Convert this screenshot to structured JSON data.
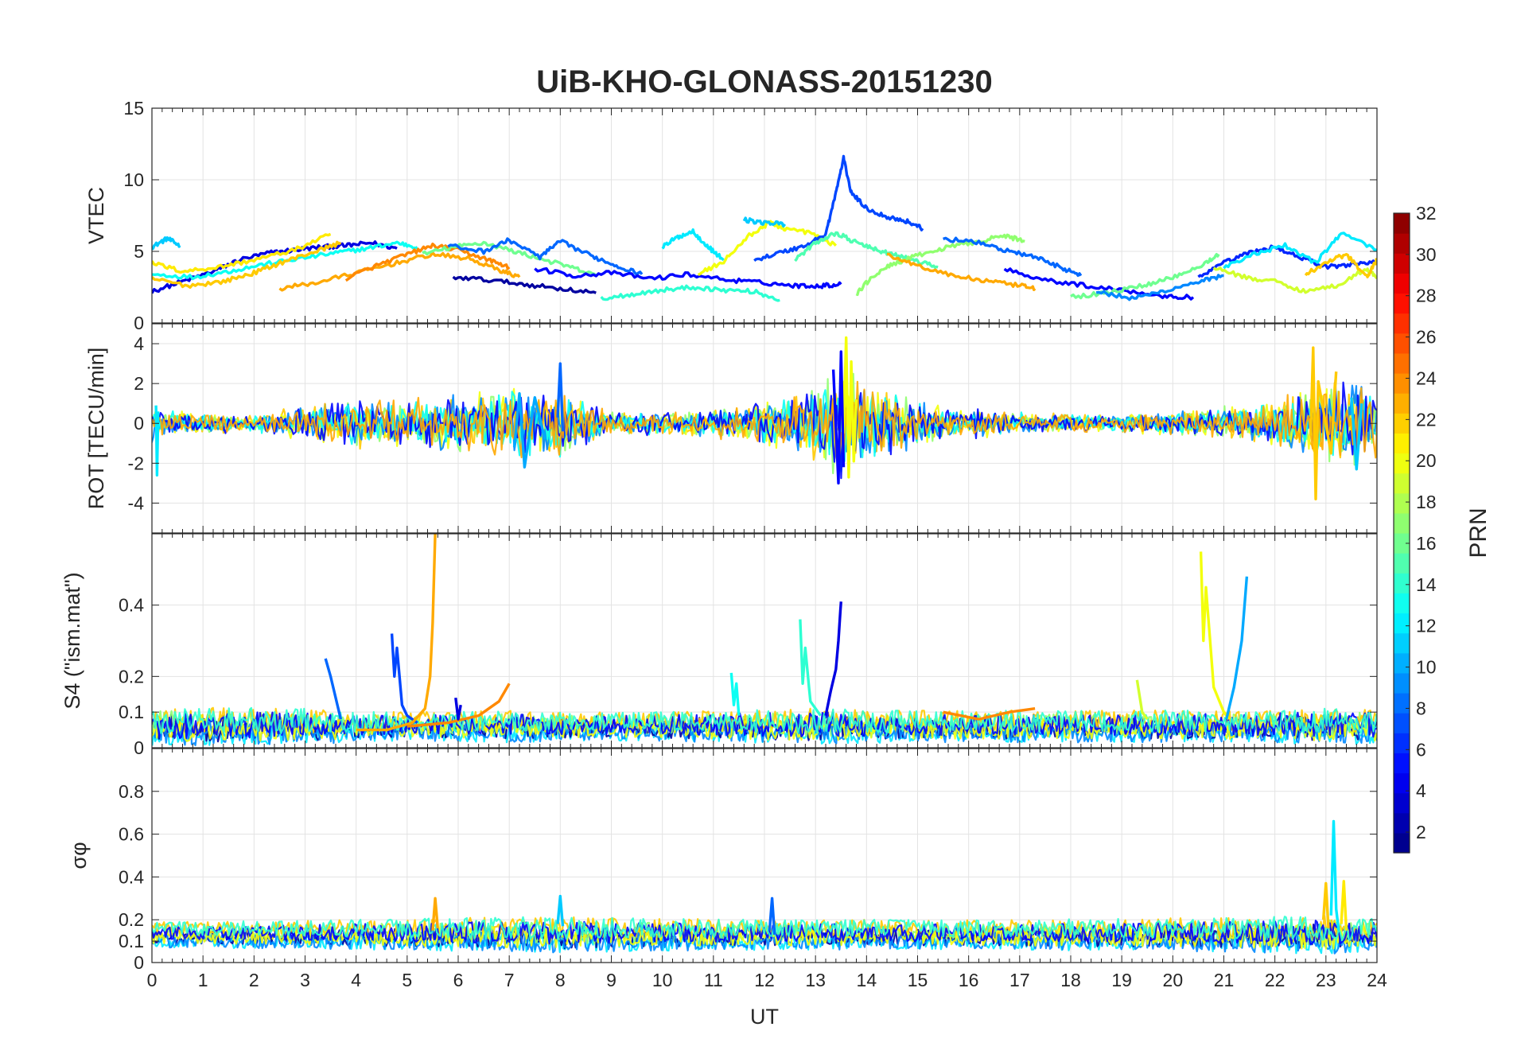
{
  "chart_data": {
    "type": "line",
    "title": "UiB-KHO-GLONASS-20151230",
    "xlabel": "UT",
    "xlim": [
      0,
      24
    ],
    "x_ticks": [
      "0",
      "1",
      "2",
      "3",
      "4",
      "5",
      "6",
      "7",
      "8",
      "9",
      "10",
      "11",
      "12",
      "13",
      "14",
      "15",
      "16",
      "17",
      "18",
      "19",
      "20",
      "21",
      "22",
      "23",
      "24"
    ],
    "grid": true,
    "colorbar": {
      "label": "PRN",
      "range": [
        1,
        32
      ],
      "ticks": [
        "2",
        "4",
        "6",
        "8",
        "10",
        "12",
        "14",
        "16",
        "18",
        "20",
        "22",
        "24",
        "26",
        "28",
        "30",
        "32"
      ],
      "colormap": "jet",
      "placement": "right"
    },
    "panels": [
      {
        "ylabel": "VTEC",
        "ylim": [
          0,
          15
        ],
        "y_ticks": [
          "0",
          "5",
          "10",
          "15"
        ],
        "series": [
          {
            "prn": 11,
            "x": [
              0.0,
              0.3,
              0.55
            ],
            "y": [
              5.3,
              5.9,
              5.4
            ]
          },
          {
            "prn": 4,
            "x": [
              0.0,
              0.6,
              1.2,
              1.7,
              2.3,
              2.8,
              3.3,
              3.8,
              4.3,
              4.8
            ],
            "y": [
              2.2,
              2.9,
              3.6,
              4.4,
              4.9,
              5.1,
              5.3,
              5.4,
              5.6,
              5.2
            ]
          },
          {
            "prn": 13,
            "x": [
              0.0,
              0.8,
              1.5,
              2.2,
              2.9,
              3.6,
              4.2,
              4.8,
              5.2
            ],
            "y": [
              3.4,
              3.2,
              3.6,
              4.1,
              4.5,
              4.9,
              5.2,
              5.6,
              5.3
            ]
          },
          {
            "prn": 21,
            "x": [
              0.0,
              0.6,
              1.3,
              2.0,
              2.8,
              3.5
            ],
            "y": [
              4.2,
              3.6,
              3.9,
              4.4,
              5.1,
              6.2
            ]
          },
          {
            "prn": 22,
            "x": [
              0.0,
              0.7,
              1.4,
              2.0,
              2.6,
              3.2,
              3.7
            ],
            "y": [
              3.1,
              2.6,
              2.9,
              3.5,
              4.3,
              5.0,
              5.6
            ]
          },
          {
            "prn": 23,
            "x": [
              2.5,
              3.2,
              4.0,
              4.8,
              5.5,
              6.2,
              6.8,
              7.2
            ],
            "y": [
              2.4,
              2.8,
              3.5,
              4.2,
              4.8,
              4.5,
              3.7,
              3.2
            ]
          },
          {
            "prn": 24,
            "x": [
              3.8,
              4.4,
              5.0,
              5.5,
              6.0,
              6.6,
              7.0
            ],
            "y": [
              3.1,
              4.0,
              4.8,
              5.4,
              5.1,
              4.4,
              3.9
            ]
          },
          {
            "prn": 16,
            "x": [
              5.3,
              5.9,
              6.5,
              7.0,
              7.6,
              8.2,
              8.7
            ],
            "y": [
              4.8,
              5.3,
              5.6,
              5.1,
              4.5,
              3.9,
              3.3
            ]
          },
          {
            "prn": 2,
            "x": [
              5.9,
              6.6,
              7.3,
              8.0,
              8.7
            ],
            "y": [
              3.2,
              3.0,
              2.7,
              2.4,
              2.1
            ]
          },
          {
            "prn": 8,
            "x": [
              5.8,
              6.5,
              7.0,
              7.6,
              8.0,
              8.6,
              9.1,
              9.6
            ],
            "y": [
              5.4,
              5.0,
              5.8,
              4.6,
              5.7,
              4.7,
              4.0,
              3.4
            ]
          },
          {
            "prn": 5,
            "x": [
              7.5,
              8.3,
              9.0,
              9.8,
              10.5,
              11.3,
              12.0,
              12.6,
              13.1,
              13.5
            ],
            "y": [
              3.8,
              3.3,
              3.5,
              3.1,
              3.4,
              3.0,
              2.8,
              2.6,
              2.6,
              2.7
            ]
          },
          {
            "prn": 14,
            "x": [
              8.8,
              9.4,
              10.0,
              10.6,
              11.2,
              11.8,
              12.3
            ],
            "y": [
              1.7,
              2.0,
              2.3,
              2.5,
              2.3,
              2.2,
              1.6
            ]
          },
          {
            "prn": 12,
            "x": [
              10.0,
              10.3,
              10.6,
              10.9,
              11.2
            ],
            "y": [
              5.3,
              6.0,
              6.4,
              5.3,
              4.4
            ]
          },
          {
            "prn": 20,
            "x": [
              10.7,
              11.2,
              11.7,
              12.1,
              12.4,
              12.9,
              13.4
            ],
            "y": [
              3.4,
              4.3,
              6.1,
              7.0,
              6.6,
              6.3,
              5.4
            ]
          },
          {
            "prn": 11,
            "x": [
              11.6,
              12.0,
              12.4
            ],
            "y": [
              7.2,
              7.0,
              6.9
            ]
          },
          {
            "prn": 7,
            "x": [
              11.8,
              12.3,
              12.8,
              13.2,
              13.4,
              13.55,
              13.7,
              14.0,
              14.4,
              14.8,
              15.1
            ],
            "y": [
              4.4,
              4.9,
              5.4,
              6.2,
              9.1,
              11.5,
              9.1,
              8.0,
              7.4,
              7.1,
              6.6
            ]
          },
          {
            "prn": 15,
            "x": [
              12.6,
              13.0,
              13.4,
              13.8,
              14.2,
              14.6,
              15.0,
              15.4
            ],
            "y": [
              4.4,
              5.6,
              6.3,
              5.6,
              5.1,
              4.7,
              4.3,
              3.9
            ]
          },
          {
            "prn": 17,
            "x": [
              13.8,
              14.1,
              14.5,
              15.0,
              15.6,
              16.2,
              16.7,
              17.1
            ],
            "y": [
              2.0,
              3.2,
              4.1,
              4.7,
              5.3,
              5.7,
              6.1,
              5.7
            ]
          },
          {
            "prn": 23,
            "x": [
              14.4,
              15.0,
              15.7,
              16.4,
              17.0,
              17.3
            ],
            "y": [
              4.8,
              4.0,
              3.3,
              2.9,
              2.6,
              2.4
            ]
          },
          {
            "prn": 8,
            "x": [
              15.5,
              16.2,
              16.8,
              17.3,
              17.8,
              18.2
            ],
            "y": [
              5.9,
              5.6,
              5.0,
              4.6,
              3.9,
              3.3
            ]
          },
          {
            "prn": 5,
            "x": [
              16.7,
              17.5,
              18.3,
              19.0,
              19.8,
              20.4
            ],
            "y": [
              3.8,
              3.0,
              2.6,
              2.3,
              1.9,
              1.8
            ]
          },
          {
            "prn": 16,
            "x": [
              18.0,
              18.7,
              19.4,
              20.0,
              20.6,
              20.9
            ],
            "y": [
              1.8,
              2.1,
              2.6,
              3.2,
              4.1,
              4.8
            ]
          },
          {
            "prn": 9,
            "x": [
              18.5,
              19.2,
              19.8,
              20.5,
              21.0
            ],
            "y": [
              2.2,
              1.7,
              2.2,
              2.9,
              3.3
            ]
          },
          {
            "prn": 6,
            "x": [
              20.5,
              21.0,
              21.5,
              22.0,
              22.5,
              23.0,
              23.5,
              24.0
            ],
            "y": [
              3.1,
              4.2,
              4.9,
              5.3,
              4.6,
              3.9,
              4.1,
              4.3
            ]
          },
          {
            "prn": 12,
            "x": [
              21.0,
              21.6,
              22.2,
              22.8,
              23.3,
              24.0
            ],
            "y": [
              3.9,
              4.8,
              5.4,
              4.2,
              6.3,
              5.1
            ]
          },
          {
            "prn": 19,
            "x": [
              20.8,
              21.4,
              22.0,
              22.6,
              23.2,
              23.8,
              24.0
            ],
            "y": [
              3.9,
              3.2,
              2.9,
              2.2,
              2.6,
              3.8,
              3.1
            ]
          },
          {
            "prn": 22,
            "x": [
              22.6,
              23.0,
              23.4,
              23.8,
              24.0
            ],
            "y": [
              3.4,
              4.2,
              4.8,
              3.2,
              4.4
            ]
          }
        ]
      },
      {
        "ylabel": "ROT [TECU/min]",
        "ylim": [
          -5.5,
          5
        ],
        "y_ticks": [
          "-4",
          "-2",
          "0",
          "2",
          "4"
        ],
        "series": [
          {
            "prn": 12,
            "x": [
              0.08,
              0.1,
              0.12
            ],
            "y": [
              0.9,
              -2.6,
              0.6
            ]
          },
          {
            "prn": 8,
            "x": [
              7.95,
              8.0,
              8.05
            ],
            "y": [
              0.3,
              3.0,
              -0.4
            ]
          },
          {
            "prn": 10,
            "x": [
              7.1,
              7.2,
              7.3,
              7.5,
              7.7
            ],
            "y": [
              -1.2,
              1.5,
              -2.2,
              1.3,
              -0.8
            ]
          },
          {
            "prn": 20,
            "x": [
              13.55,
              13.6,
              13.65,
              13.7,
              13.75,
              13.8
            ],
            "y": [
              -0.5,
              4.3,
              -2.7,
              3.1,
              -1.9,
              1.2
            ]
          },
          {
            "prn": 5,
            "x": [
              13.35,
              13.45,
              13.5,
              13.55
            ],
            "y": [
              2.7,
              -3.0,
              3.6,
              -2.2
            ]
          },
          {
            "prn": 22,
            "x": [
              22.7,
              22.75,
              22.8,
              22.85,
              23.1,
              23.2
            ],
            "y": [
              -0.6,
              3.8,
              -3.8,
              2.1,
              -1.5,
              2.6
            ]
          },
          {
            "prn": 11,
            "x": [
              23.5,
              23.6,
              23.7
            ],
            "y": [
              1.3,
              -2.3,
              1.0
            ]
          }
        ]
      },
      {
        "ylabel": "S4 (\"ism.mat\")",
        "ylim": [
          0,
          0.6
        ],
        "y_ticks": [
          "0",
          "0.1",
          "0.2",
          "0.4"
        ],
        "series": [
          {
            "prn": 8,
            "x": [
              3.4,
              3.5,
              3.6,
              3.7
            ],
            "y": [
              0.25,
              0.2,
              0.14,
              0.08
            ]
          },
          {
            "prn": 7,
            "x": [
              4.7,
              4.75,
              4.8,
              4.9,
              5.0,
              5.2
            ],
            "y": [
              0.32,
              0.2,
              0.28,
              0.12,
              0.09,
              0.07
            ]
          },
          {
            "prn": 23,
            "x": [
              4.0,
              4.6,
              5.1,
              5.35,
              5.45,
              5.5,
              5.55
            ],
            "y": [
              0.05,
              0.05,
              0.07,
              0.11,
              0.2,
              0.35,
              0.6
            ]
          },
          {
            "prn": 24,
            "x": [
              5.0,
              5.8,
              6.4,
              6.8,
              7.0
            ],
            "y": [
              0.06,
              0.07,
              0.09,
              0.13,
              0.18
            ]
          },
          {
            "prn": 4,
            "x": [
              5.95,
              6.0,
              6.05
            ],
            "y": [
              0.14,
              0.08,
              0.12
            ]
          },
          {
            "prn": 13,
            "x": [
              11.35,
              11.4,
              11.45,
              11.5
            ],
            "y": [
              0.21,
              0.12,
              0.18,
              0.09
            ]
          },
          {
            "prn": 14,
            "x": [
              12.7,
              12.75,
              12.8,
              12.9,
              13.1
            ],
            "y": [
              0.36,
              0.18,
              0.28,
              0.13,
              0.09
            ]
          },
          {
            "prn": 4,
            "x": [
              13.2,
              13.3,
              13.4,
              13.45,
              13.5
            ],
            "y": [
              0.09,
              0.16,
              0.22,
              0.3,
              0.41
            ]
          },
          {
            "prn": 24,
            "x": [
              15.5,
              16.2,
              16.8,
              17.3
            ],
            "y": [
              0.1,
              0.08,
              0.1,
              0.11
            ]
          },
          {
            "prn": 19,
            "x": [
              19.3,
              19.4,
              19.5
            ],
            "y": [
              0.19,
              0.1,
              0.08
            ]
          },
          {
            "prn": 20,
            "x": [
              20.55,
              20.6,
              20.65,
              20.8,
              21.0,
              21.1
            ],
            "y": [
              0.55,
              0.3,
              0.45,
              0.17,
              0.1,
              0.08
            ]
          },
          {
            "prn": 10,
            "x": [
              21.05,
              21.2,
              21.35,
              21.45
            ],
            "y": [
              0.08,
              0.17,
              0.3,
              0.48
            ]
          }
        ]
      },
      {
        "ylabel": "σφ",
        "ylim": [
          0,
          1
        ],
        "y_ticks": [
          "0",
          "0.1",
          "0.2",
          "0.4",
          "0.6",
          "0.8"
        ],
        "series": [
          {
            "prn": 12,
            "x": [
              23.1,
              23.15,
              23.2,
              23.25
            ],
            "y": [
              0.22,
              0.66,
              0.25,
              0.15
            ]
          },
          {
            "prn": 22,
            "x": [
              22.95,
              23.0,
              23.05
            ],
            "y": [
              0.2,
              0.37,
              0.16
            ]
          },
          {
            "prn": 21,
            "x": [
              23.3,
              23.35,
              23.4
            ],
            "y": [
              0.18,
              0.38,
              0.15
            ]
          },
          {
            "prn": 23,
            "x": [
              5.5,
              5.55,
              5.6
            ],
            "y": [
              0.15,
              0.3,
              0.16
            ]
          },
          {
            "prn": 11,
            "x": [
              7.95,
              8.0,
              8.05
            ],
            "y": [
              0.18,
              0.31,
              0.17
            ]
          },
          {
            "prn": 8,
            "x": [
              12.1,
              12.15,
              12.2
            ],
            "y": [
              0.15,
              0.3,
              0.13
            ]
          }
        ]
      }
    ]
  }
}
